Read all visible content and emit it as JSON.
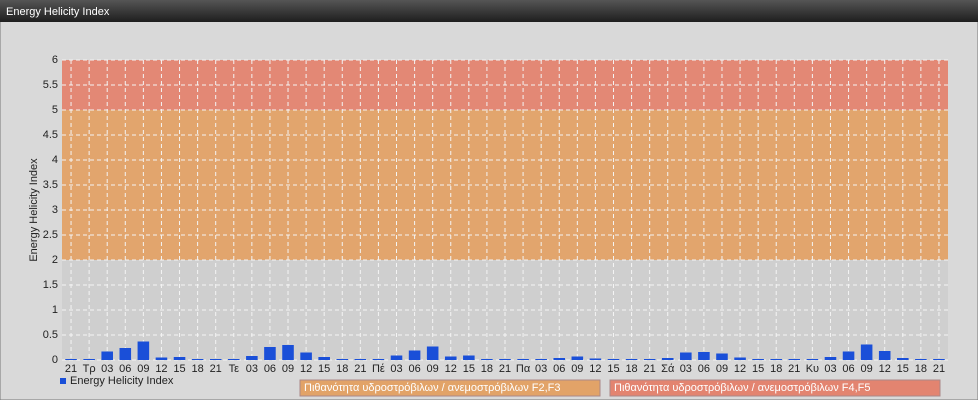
{
  "window_title": "Energy Helicity Index",
  "chart_data": {
    "type": "bar",
    "y_label": "Energy Helicity Index",
    "categories": [
      "21",
      "Τρ",
      "03",
      "06",
      "09",
      "12",
      "15",
      "18",
      "21",
      "Τε",
      "03",
      "06",
      "09",
      "12",
      "15",
      "18",
      "21",
      "Πέ",
      "03",
      "06",
      "09",
      "12",
      "15",
      "18",
      "21",
      "Πα",
      "03",
      "06",
      "09",
      "12",
      "15",
      "18",
      "21",
      "Σά",
      "03",
      "06",
      "09",
      "12",
      "15",
      "18",
      "21",
      "Κυ",
      "03",
      "06",
      "09",
      "12",
      "15",
      "18",
      "21"
    ],
    "series": [
      {
        "name": "Energy Helicity Index",
        "color": "#1a4fd8",
        "values": [
          0.02,
          0.02,
          0.17,
          0.24,
          0.37,
          0.05,
          0.06,
          0.02,
          0.02,
          0.02,
          0.08,
          0.26,
          0.3,
          0.15,
          0.06,
          0.02,
          0.02,
          0.02,
          0.09,
          0.19,
          0.27,
          0.07,
          0.09,
          0.02,
          0.02,
          0.02,
          0.02,
          0.04,
          0.07,
          0.03,
          0.02,
          0.02,
          0.02,
          0.04,
          0.15,
          0.16,
          0.13,
          0.05,
          0.02,
          0.02,
          0.02,
          0.02,
          0.06,
          0.17,
          0.31,
          0.18,
          0.04,
          0.02,
          0.02
        ]
      }
    ],
    "bands": [
      {
        "name": "Πιθανότητα υδροστρόβιλων / ανεμοστρόβιλων F2,F3",
        "from": 2,
        "to": 5,
        "color": "#e3a062"
      },
      {
        "name": "Πιθανότητα υδροστρόβιλων / ανεμοστρόβιλων F4,F5",
        "from": 5,
        "to": 6,
        "color": "#e4806a"
      }
    ],
    "ylim": [
      0,
      6
    ],
    "yticks": [
      0,
      0.5,
      1,
      1.5,
      2,
      2.5,
      3,
      3.5,
      4,
      4.5,
      5,
      5.5,
      6
    ],
    "grid": true
  }
}
